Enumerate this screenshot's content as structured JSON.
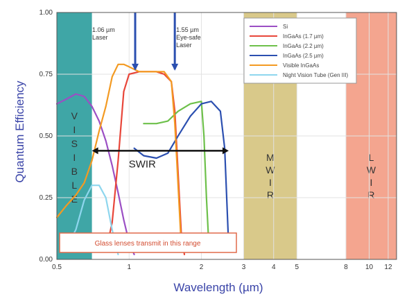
{
  "chart_data": {
    "type": "line",
    "title": "",
    "xlabel": "Wavelength (µm)",
    "ylabel": "Quantum Efficiency",
    "xlim": [
      0.5,
      13
    ],
    "ylim": [
      0,
      1
    ],
    "x_scale": "log",
    "x_ticks": [
      {
        "value": 0.5,
        "label": "0.5"
      },
      {
        "value": 1,
        "label": "1"
      },
      {
        "value": 2,
        "label": "2"
      },
      {
        "value": 3,
        "label": "3"
      },
      {
        "value": 4,
        "label": "4"
      },
      {
        "value": 5,
        "label": "5"
      },
      {
        "value": 8,
        "label": "8"
      },
      {
        "value": 10,
        "label": "10"
      },
      {
        "value": 12,
        "label": "12"
      }
    ],
    "y_ticks": [
      {
        "value": 0,
        "label": "0.00"
      },
      {
        "value": 0.25,
        "label": "0.25"
      },
      {
        "value": 0.5,
        "label": "0.50"
      },
      {
        "value": 0.75,
        "label": "0.75"
      },
      {
        "value": 1,
        "label": "1.00"
      }
    ],
    "grid": true,
    "legend_position": "top-right",
    "bands": [
      {
        "name": "visible",
        "label": "VISIBLE",
        "x_range": [
          0.5,
          0.7
        ],
        "color": "#3fa6a6"
      },
      {
        "name": "mwir",
        "label": "MWIR",
        "x_range": [
          3,
          5
        ],
        "color": "#d9c98a"
      },
      {
        "name": "lwir",
        "label": "LWIR",
        "x_range": [
          8,
          13
        ],
        "color": "#f4a58f"
      }
    ],
    "series": [
      {
        "name": "Si",
        "color": "#9b4fc4",
        "points": [
          [
            0.5,
            0.63
          ],
          [
            0.55,
            0.65
          ],
          [
            0.6,
            0.67
          ],
          [
            0.65,
            0.66
          ],
          [
            0.7,
            0.62
          ],
          [
            0.75,
            0.56
          ],
          [
            0.8,
            0.48
          ],
          [
            0.85,
            0.38
          ],
          [
            0.9,
            0.27
          ],
          [
            0.95,
            0.16
          ],
          [
            1.0,
            0.07
          ],
          [
            1.05,
            0.02
          ]
        ]
      },
      {
        "name": "InGaAs (1.7 µm)",
        "color": "#e8463a",
        "points": [
          [
            0.8,
            0.03
          ],
          [
            0.85,
            0.15
          ],
          [
            0.9,
            0.4
          ],
          [
            0.95,
            0.68
          ],
          [
            1.0,
            0.75
          ],
          [
            1.1,
            0.76
          ],
          [
            1.2,
            0.76
          ],
          [
            1.3,
            0.76
          ],
          [
            1.4,
            0.75
          ],
          [
            1.5,
            0.72
          ],
          [
            1.55,
            0.6
          ],
          [
            1.6,
            0.35
          ],
          [
            1.65,
            0.1
          ],
          [
            1.7,
            0.02
          ]
        ]
      },
      {
        "name": "InGaAs (2.2 µm)",
        "color": "#6dc04a",
        "points": [
          [
            1.15,
            0.55
          ],
          [
            1.3,
            0.55
          ],
          [
            1.45,
            0.56
          ],
          [
            1.6,
            0.6
          ],
          [
            1.8,
            0.63
          ],
          [
            2.0,
            0.64
          ],
          [
            2.05,
            0.5
          ],
          [
            2.1,
            0.25
          ],
          [
            2.15,
            0.05
          ]
        ]
      },
      {
        "name": "InGaAs (2.5 µm)",
        "color": "#2b4fb0",
        "points": [
          [
            1.05,
            0.45
          ],
          [
            1.15,
            0.42
          ],
          [
            1.3,
            0.41
          ],
          [
            1.45,
            0.43
          ],
          [
            1.6,
            0.5
          ],
          [
            1.8,
            0.58
          ],
          [
            2.0,
            0.63
          ],
          [
            2.2,
            0.64
          ],
          [
            2.4,
            0.6
          ],
          [
            2.5,
            0.45
          ],
          [
            2.55,
            0.25
          ],
          [
            2.6,
            0.05
          ]
        ]
      },
      {
        "name": "Visible InGaAs",
        "color": "#f39a22",
        "points": [
          [
            0.5,
            0.17
          ],
          [
            0.55,
            0.22
          ],
          [
            0.6,
            0.26
          ],
          [
            0.65,
            0.31
          ],
          [
            0.7,
            0.4
          ],
          [
            0.75,
            0.52
          ],
          [
            0.8,
            0.62
          ],
          [
            0.85,
            0.74
          ],
          [
            0.9,
            0.79
          ],
          [
            0.95,
            0.79
          ],
          [
            1.0,
            0.78
          ],
          [
            1.1,
            0.76
          ],
          [
            1.2,
            0.76
          ],
          [
            1.3,
            0.76
          ],
          [
            1.4,
            0.76
          ],
          [
            1.5,
            0.72
          ],
          [
            1.55,
            0.55
          ],
          [
            1.6,
            0.3
          ],
          [
            1.65,
            0.05
          ]
        ]
      },
      {
        "name": "Night Vision Tube (Gen III)",
        "color": "#8ed6ee",
        "points": [
          [
            0.55,
            0.05
          ],
          [
            0.6,
            0.12
          ],
          [
            0.65,
            0.24
          ],
          [
            0.7,
            0.3
          ],
          [
            0.75,
            0.3
          ],
          [
            0.8,
            0.25
          ],
          [
            0.85,
            0.12
          ],
          [
            0.9,
            0.02
          ]
        ]
      }
    ],
    "annotations": {
      "laser_1": {
        "x": 1.06,
        "lines": [
          "1.06 µm",
          "Laser"
        ]
      },
      "laser_2": {
        "x": 1.55,
        "lines": [
          "1.55 µm",
          "Eye-safe",
          "Laser"
        ]
      },
      "swir": {
        "label": "SWIR",
        "x_range": [
          0.7,
          2.6
        ],
        "y": 0.44
      },
      "glass_note": "Glass lenses transmit in this range"
    }
  }
}
